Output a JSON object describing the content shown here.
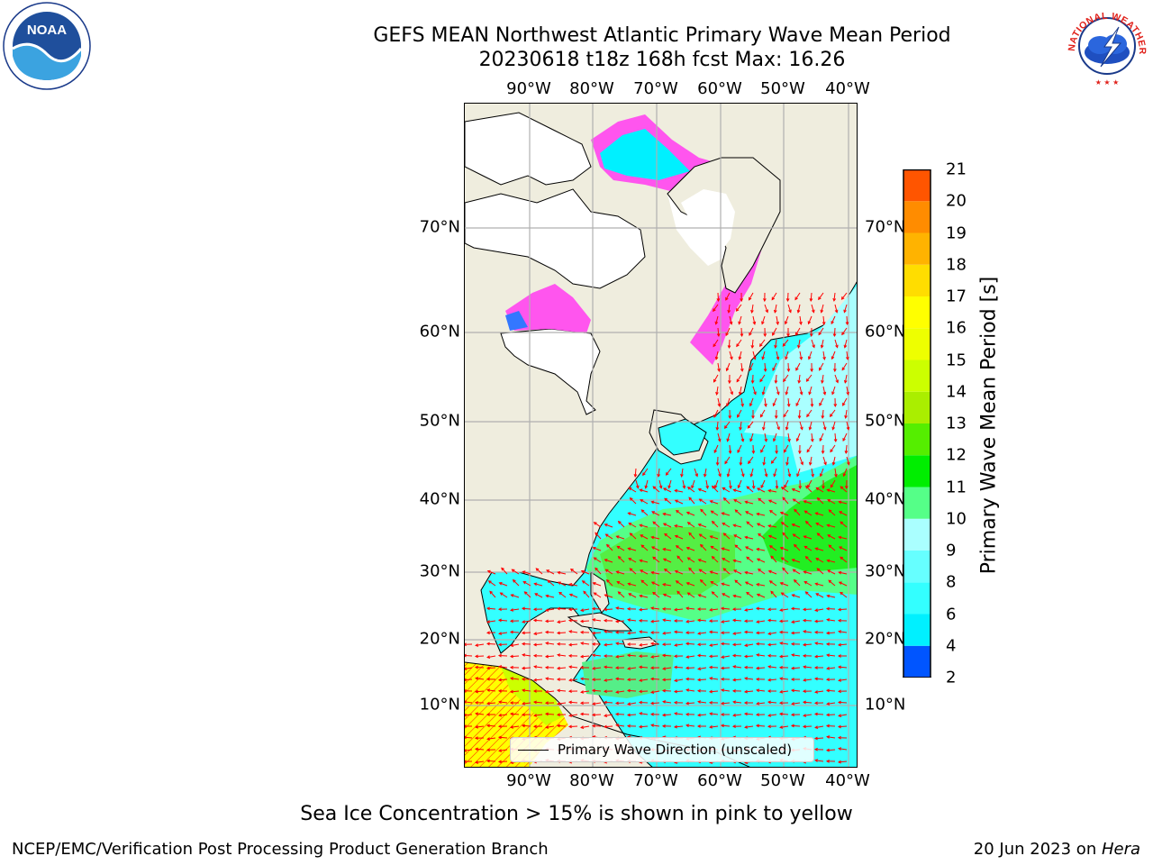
{
  "title": {
    "line1": "GEFS MEAN Northwest Atlantic Primary Wave Mean Period",
    "line2": "20230618 t18z 168h fcst   Max: 16.26"
  },
  "map": {
    "lon_labels": [
      "90°W",
      "80°W",
      "70°W",
      "60°W",
      "50°W",
      "40°W"
    ],
    "lat_labels": [
      "70°N",
      "60°N",
      "50°N",
      "40°N",
      "30°N",
      "20°N",
      "10°N"
    ],
    "legend_label": "Primary Wave Direction (unscaled)",
    "land_color": "#efedde",
    "ocean_color": "#ffffff",
    "arrow_color": "#ff0000",
    "grid_color": "#b0b0b0"
  },
  "colorbar": {
    "label": "Primary Wave Mean Period [s]",
    "ticks": [
      "2",
      "4",
      "6",
      "8",
      "9",
      "10",
      "11",
      "12",
      "13",
      "14",
      "15",
      "16",
      "17",
      "18",
      "19",
      "20",
      "21"
    ],
    "colors": [
      "#0055ff",
      "#00f0ff",
      "#33ffff",
      "#66ffff",
      "#aaffff",
      "#55ff88",
      "#00ee00",
      "#55ee00",
      "#aaee00",
      "#ccff00",
      "#eeff00",
      "#ffff00",
      "#ffdd00",
      "#ffb300",
      "#ff8c00",
      "#ff5500",
      "#ff2200",
      "#ff0000"
    ],
    "extend_color": "#0000ff"
  },
  "footnote": "Sea Ice Concentration > 15% is shown in pink to yellow",
  "credit": "NCEP/EMC/Verification Post Processing Product Generation Branch",
  "date_stamp": {
    "date": "20 Jun 2023 on ",
    "machine": "Hera"
  },
  "logos": {
    "noaa_text": "NOAA",
    "nws_text": "NATIONAL WEATHER SERVICE"
  }
}
